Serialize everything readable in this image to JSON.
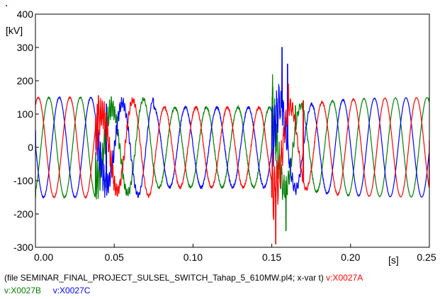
{
  "chart_data": {
    "type": "line",
    "yunit": "[kV]",
    "xunit": "[s]",
    "xlim": [
      0.0,
      0.25
    ],
    "ylim": [
      -300,
      400
    ],
    "xticks": [
      "0.00",
      "0.05",
      "0.10",
      "0.15",
      "0.20",
      "0.25"
    ],
    "xtick_values": [
      0.0,
      0.05,
      0.1,
      0.15,
      0.2,
      0.25
    ],
    "yticks": [
      "400",
      "300",
      "200",
      "100",
      "0",
      "-100",
      "-200",
      "-300"
    ],
    "ytick_values": [
      400,
      300,
      200,
      100,
      0,
      -100,
      -200,
      -300
    ],
    "grid": false,
    "frequency_hz": 50,
    "nominal_amplitude_kv": 150,
    "series": [
      {
        "name": "v:X0027A",
        "color": "#ff0000",
        "phase_deg": 0,
        "key_points": [
          [
            0.04,
            155
          ],
          [
            0.15,
            -150
          ],
          [
            0.1525,
            -290
          ],
          [
            0.1605,
            190
          ],
          [
            0.17,
            140
          ],
          [
            0.25,
            20
          ]
        ]
      },
      {
        "name": "v:X0027B",
        "color": "#008000",
        "phase_deg": -120,
        "key_points": [
          [
            0.0,
            -150
          ],
          [
            0.045,
            -120
          ],
          [
            0.159,
            -250
          ],
          [
            0.165,
            125
          ],
          [
            0.17,
            140
          ],
          [
            0.25,
            150
          ]
        ]
      },
      {
        "name": "v:X0027C",
        "color": "#0000ff",
        "phase_deg": 120,
        "key_points": [
          [
            0.0,
            50
          ],
          [
            0.045,
            130
          ],
          [
            0.1565,
            300
          ],
          [
            0.16,
            250
          ],
          [
            0.17,
            100
          ],
          [
            0.25,
            -80
          ]
        ]
      }
    ]
  },
  "footer": {
    "file_info": "(file SEMINAR_FINAL_PROJECT_SULSEL_SWITCH_Tahap_5_610MW.pl4; x-var t) ",
    "series_a": "v:X0027A",
    "series_b": "v:X0027B",
    "series_c": "v:X0027C"
  },
  "colors": {
    "a": "#ff0000",
    "b": "#008000",
    "c": "#0000ff",
    "axis": "#000000"
  }
}
